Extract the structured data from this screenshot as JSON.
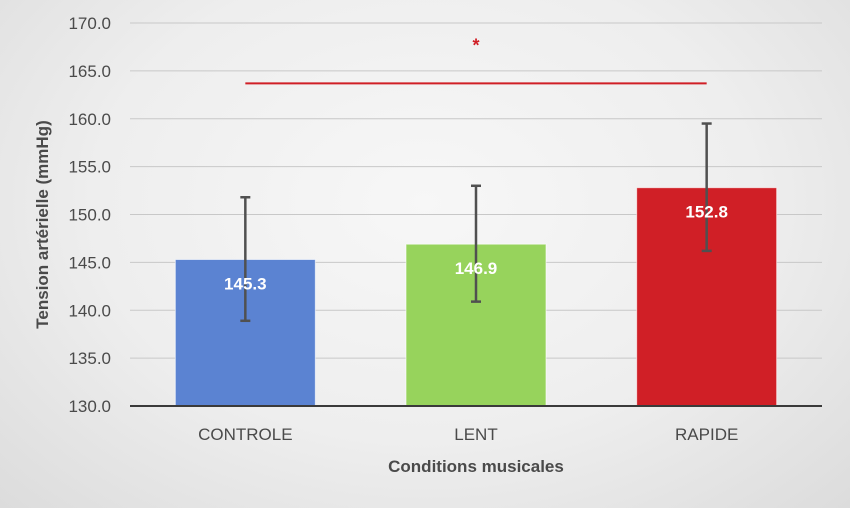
{
  "chart_data": {
    "type": "bar",
    "categories": [
      "CONTROLE",
      "LENT",
      "RAPIDE"
    ],
    "values": [
      145.3,
      146.9,
      152.8
    ],
    "error_low": [
      138.9,
      140.9,
      146.2
    ],
    "error_high": [
      151.8,
      153.0,
      159.5
    ],
    "data_labels": [
      "145.3",
      "146.9",
      "152.8"
    ],
    "colors": [
      "#5b83d2",
      "#97d35c",
      "#d01f26"
    ],
    "xlabel": "Conditions musicales",
    "ylabel": "Tension artérielle (mmHg)",
    "ylim": [
      130.0,
      170.0
    ],
    "yticks": [
      130.0,
      135.0,
      140.0,
      145.0,
      150.0,
      155.0,
      160.0,
      165.0,
      170.0
    ],
    "ytick_labels": [
      "130.0",
      "135.0",
      "140.0",
      "145.0",
      "150.0",
      "155.0",
      "160.0",
      "165.0",
      "170.0"
    ],
    "grid": true,
    "annotation": {
      "text": "*",
      "from_category": "CONTROLE",
      "to_category": "RAPIDE",
      "line_value": 163.7,
      "color": "#d01f26"
    }
  }
}
